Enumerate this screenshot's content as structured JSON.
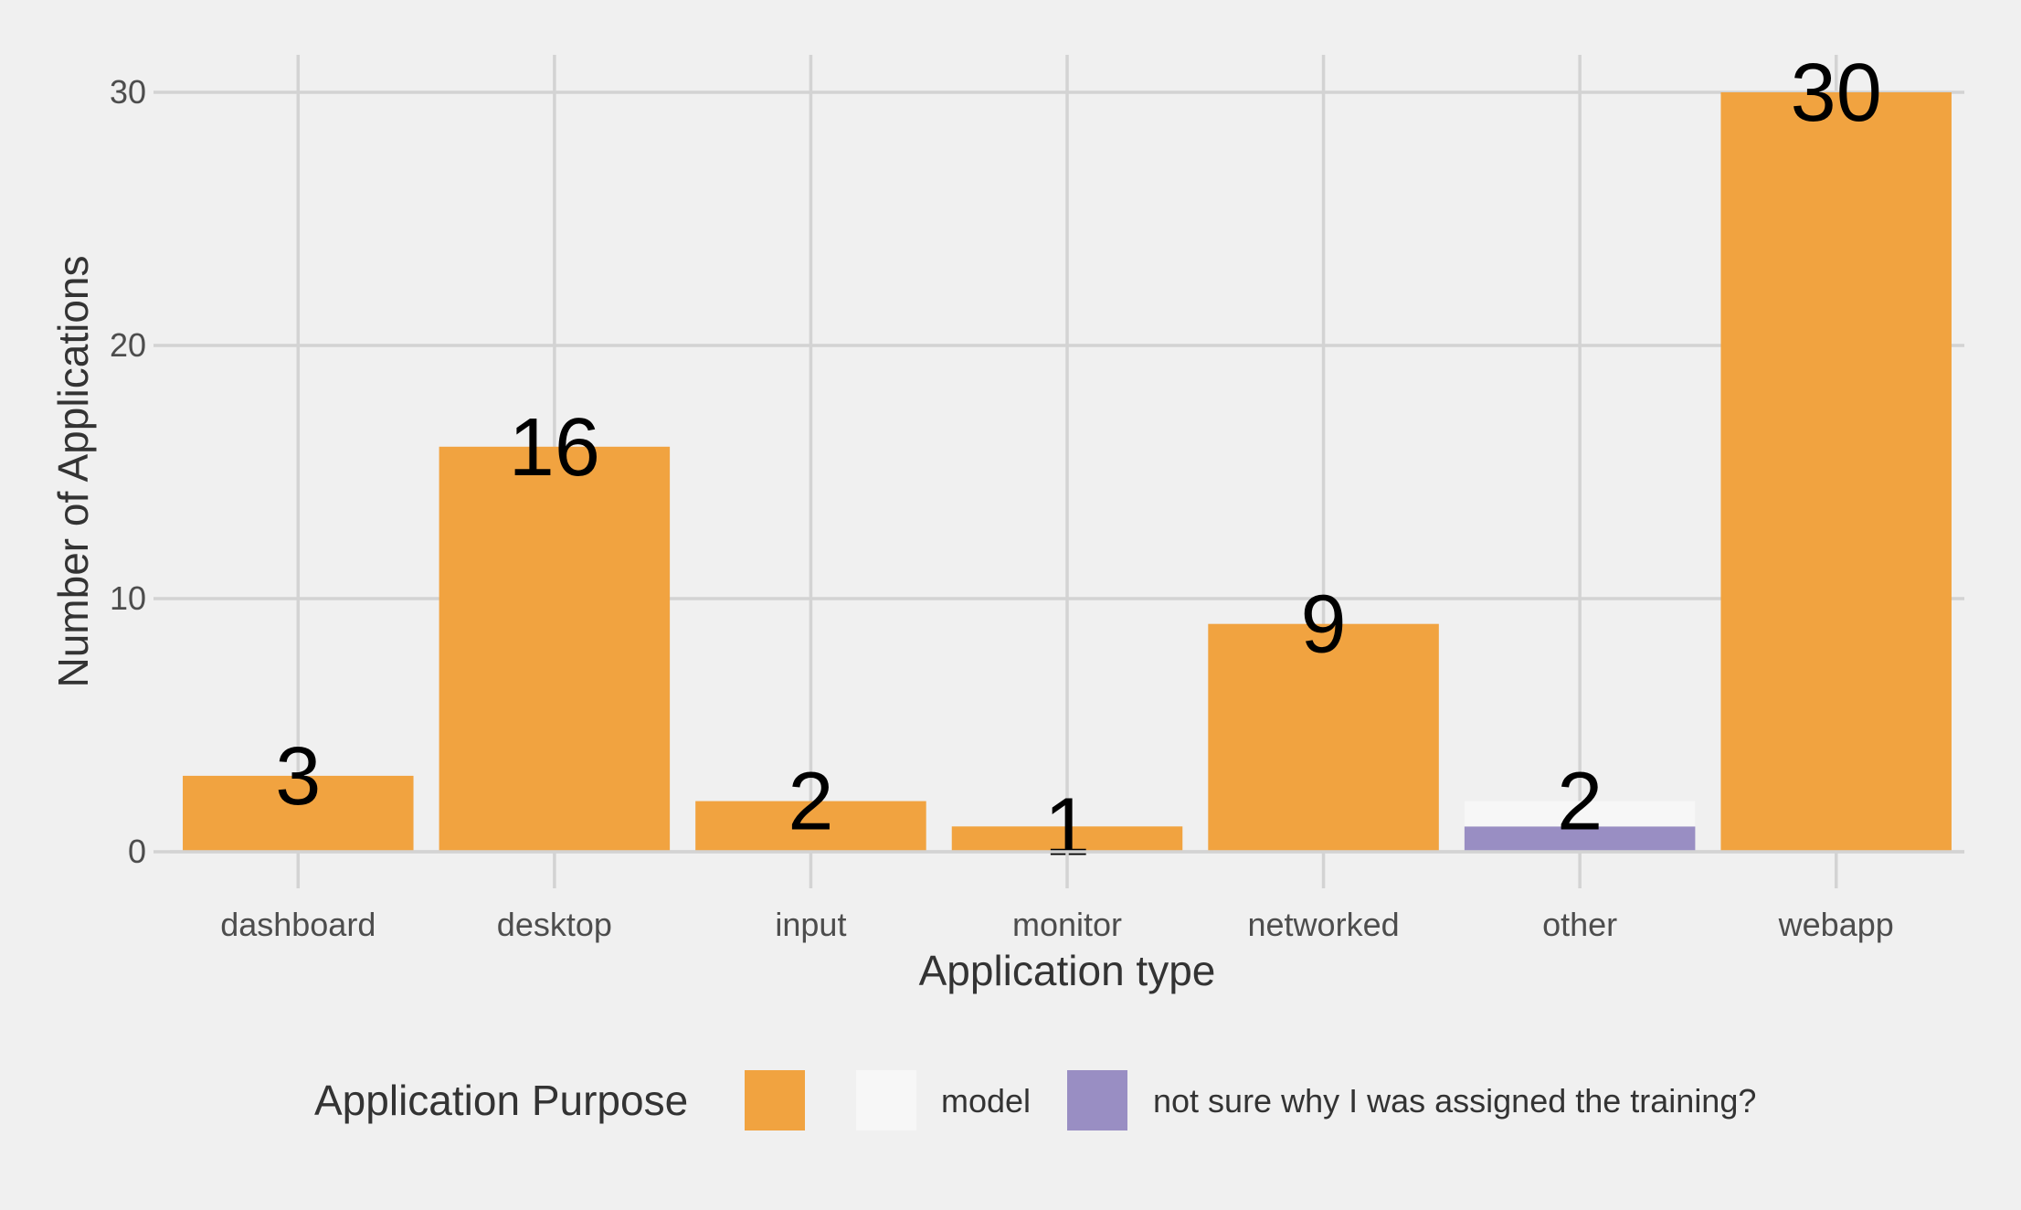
{
  "chart_data": {
    "type": "bar",
    "stacked": true,
    "title": "",
    "xlabel": "Application type",
    "ylabel": "Number of Applications",
    "ylim": [
      0,
      32
    ],
    "yticks": [
      0,
      10,
      20,
      30
    ],
    "grid": true,
    "categories": [
      "dashboard",
      "desktop",
      "input",
      "monitor",
      "networked",
      "other",
      "webapp"
    ],
    "series": [
      {
        "name": "",
        "color": "#f1a340",
        "values": [
          3,
          16,
          2,
          1,
          9,
          0,
          30
        ]
      },
      {
        "name": "model",
        "color": "#f7f7f7",
        "values": [
          0,
          0,
          0,
          0,
          0,
          1,
          0
        ]
      },
      {
        "name": "not sure why I was assigned the training?",
        "color": "#998ec3",
        "values": [
          0,
          0,
          0,
          0,
          0,
          1,
          0
        ]
      }
    ],
    "totals": [
      3,
      16,
      2,
      1,
      9,
      2,
      30
    ],
    "legend": {
      "title": "Application Purpose",
      "placement": "bottom"
    }
  }
}
